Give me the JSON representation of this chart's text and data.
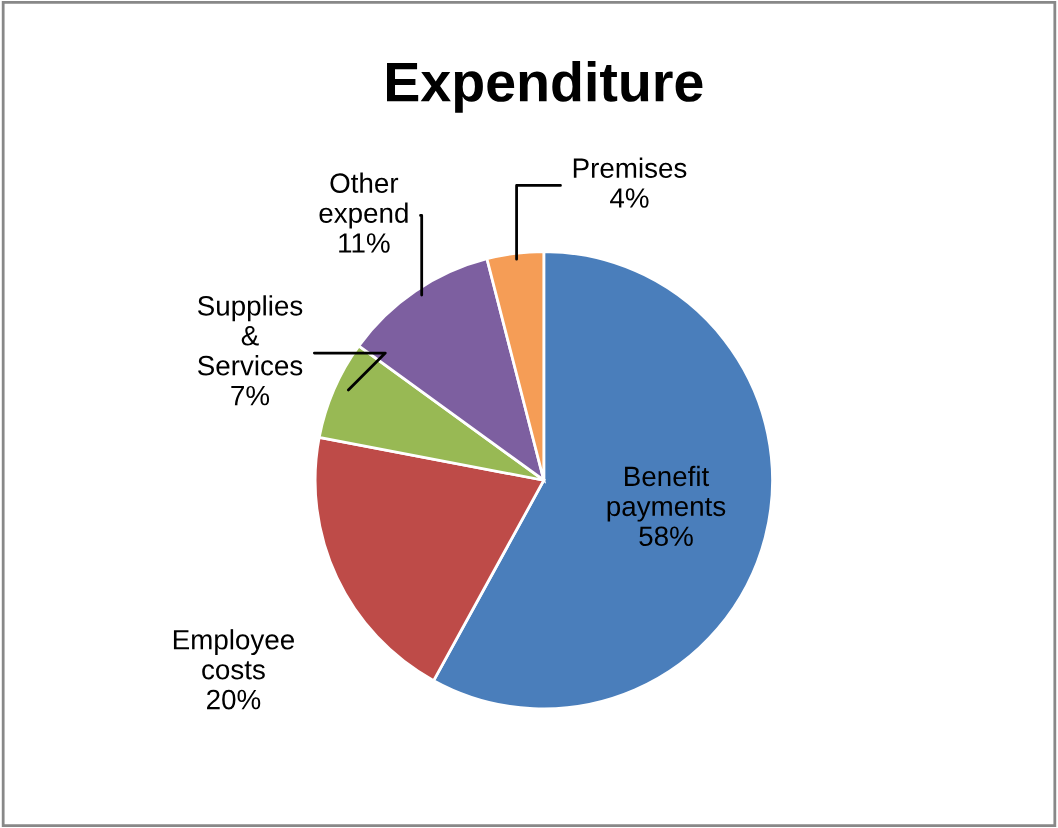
{
  "chart_data": {
    "type": "pie",
    "title": "Expenditure",
    "categories": [
      "Benefit payments",
      "Employee costs",
      "Supplies & Services",
      "Other expend",
      "Premises"
    ],
    "values": [
      58,
      20,
      7,
      11,
      4
    ],
    "colors": [
      "#4a7ebb",
      "#be4b48",
      "#98b954",
      "#7d5fa0",
      "#f59d56"
    ],
    "value_labels": [
      "58%",
      "20%",
      "7%",
      "11%",
      "4%"
    ],
    "legend": false
  }
}
